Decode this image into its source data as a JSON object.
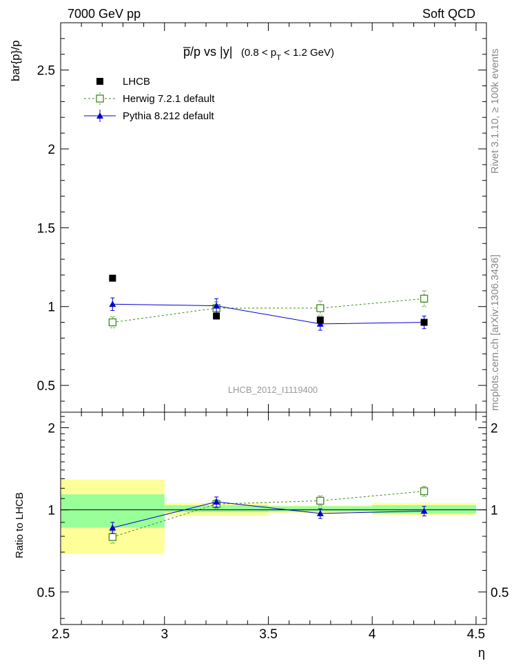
{
  "header": {
    "left": "7000 GeV pp",
    "right": "Soft QCD"
  },
  "side_labels": {
    "rivet": "Rivet 3.1.10, ≥ 100k events",
    "mcplots": "mcplots.cern.ch [arXiv:1306.3436]"
  },
  "watermark": "LHCB_2012_I1119400",
  "chart_data": {
    "type": "scatter",
    "title": {
      "main": "p̅/p vs |y|",
      "range_open": "(0.8 < p",
      "range_sub": "T",
      "range_close": " < 1.2 GeV)"
    },
    "xlabel": "η",
    "xlim": [
      2.5,
      4.55
    ],
    "x_ticks": [
      2.5,
      3,
      3.5,
      4,
      4.5
    ],
    "x_tick_labels": [
      "2.5",
      "3",
      "3.5",
      "4",
      "4.5"
    ],
    "main_panel": {
      "ylabel": "bar{p}/p",
      "ylim": [
        0.33,
        2.8
      ],
      "y_ticks": [
        0.5,
        1,
        1.5,
        2,
        2.5
      ],
      "y_tick_labels": [
        "0.5",
        "1",
        "1.5",
        "2",
        "2.5"
      ]
    },
    "ratio_panel": {
      "ylabel": "Ratio to LHCB",
      "ylim": [
        0.38,
        2.28
      ],
      "y_ticks": [
        0.5,
        1,
        2
      ],
      "y_tick_labels": [
        "0.5",
        "1",
        "2"
      ]
    },
    "bins": [
      [
        2.5,
        3.0
      ],
      [
        3.0,
        3.5
      ],
      [
        3.5,
        4.0
      ],
      [
        4.0,
        4.5
      ]
    ],
    "x": [
      2.75,
      3.25,
      3.75,
      4.25
    ],
    "series": [
      {
        "name": "LHCB",
        "role": "data",
        "values": [
          1.18,
          0.94,
          0.915,
          0.9
        ],
        "errors": [
          0.01,
          0.015,
          0.015,
          0.015
        ],
        "color": "#000000",
        "marker": "filled-square"
      },
      {
        "name": "Herwig 7.2.1 default",
        "role": "mc",
        "values": [
          0.9,
          0.99,
          0.99,
          1.05
        ],
        "errors": [
          0.035,
          0.04,
          0.045,
          0.05
        ],
        "ratio": [
          0.795,
          1.05,
          1.08,
          1.17
        ],
        "ratio_errors": [
          0.04,
          0.04,
          0.045,
          0.05
        ],
        "color": "#3a8a1a",
        "marker": "open-square",
        "line": "dashed"
      },
      {
        "name": "Pythia 8.212 default",
        "role": "mc",
        "values": [
          1.015,
          1.005,
          0.89,
          0.9
        ],
        "errors": [
          0.04,
          0.045,
          0.04,
          0.04
        ],
        "ratio": [
          0.86,
          1.07,
          0.97,
          0.99
        ],
        "ratio_errors": [
          0.04,
          0.045,
          0.04,
          0.04
        ],
        "color": "#0000cc",
        "marker": "filled-triangle",
        "line": "solid"
      }
    ],
    "ratio_bands": {
      "inner_color": "#99ff99",
      "outer_color": "#ffff99",
      "inner": [
        [
          0.86,
          1.14
        ],
        [
          0.98,
          1.04
        ],
        [
          0.985,
          1.03
        ],
        [
          0.97,
          1.04
        ]
      ],
      "outer": [
        [
          0.69,
          1.29
        ],
        [
          0.95,
          1.06
        ],
        [
          0.975,
          1.04
        ],
        [
          0.955,
          1.06
        ]
      ]
    }
  }
}
